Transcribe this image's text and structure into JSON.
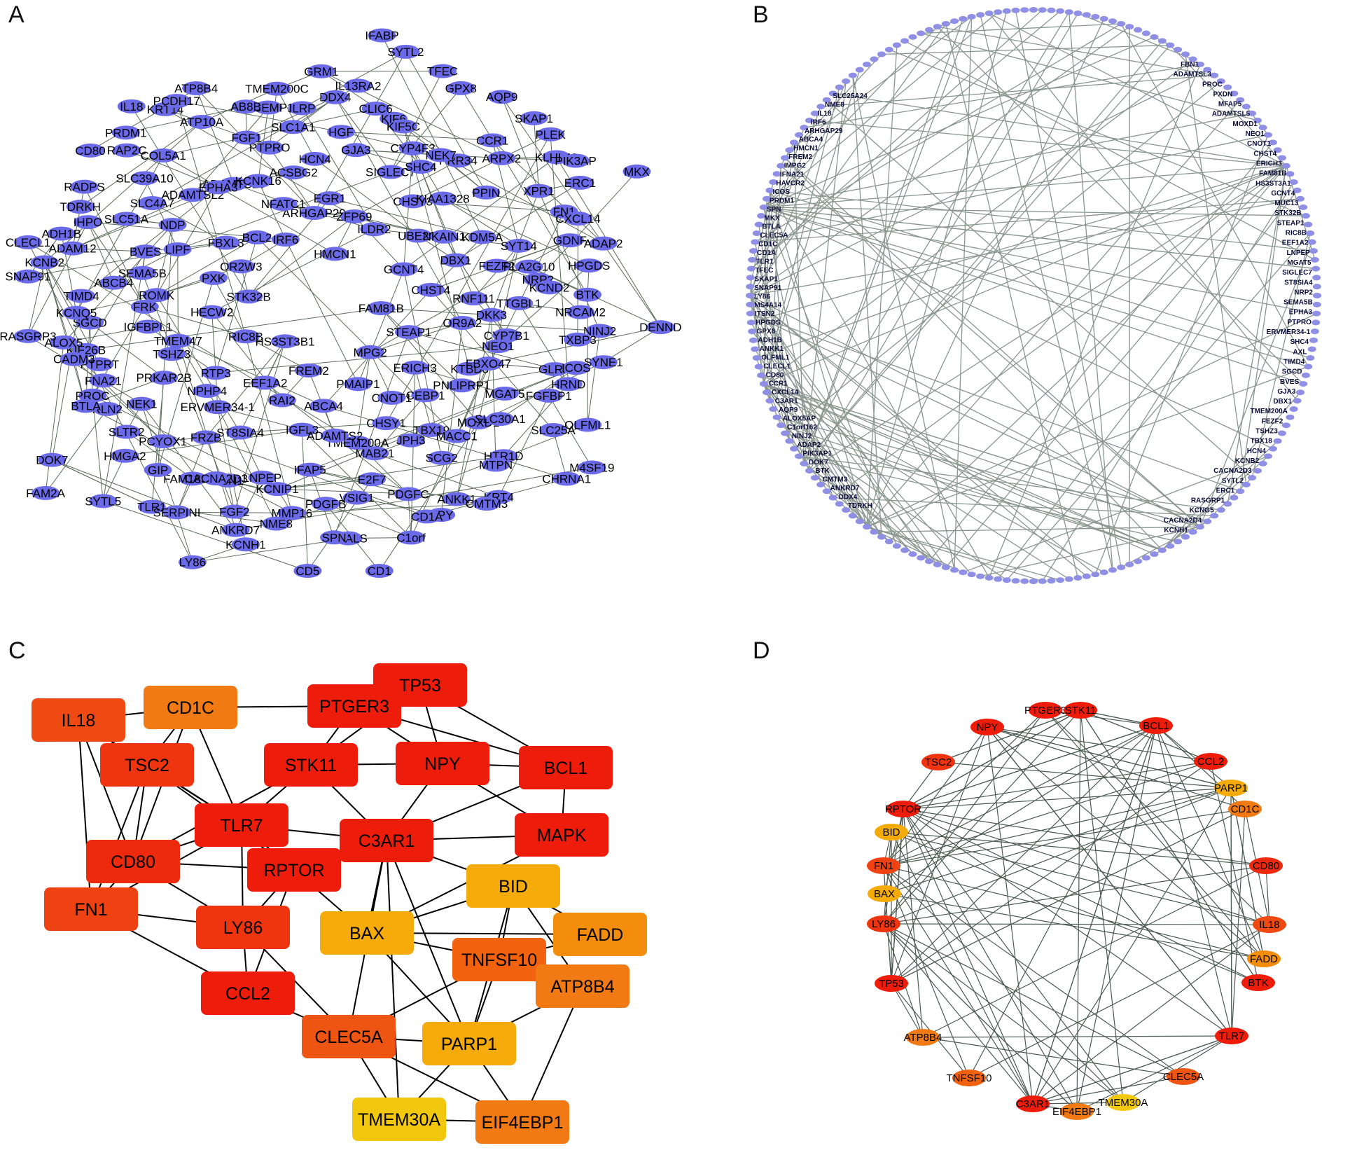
{
  "panels": {
    "A": {
      "label": "A",
      "nodes": [
        "FAM81B",
        "HS3ST3B1",
        "HMCN1",
        "MPG2",
        "STK32B",
        "GCNT4",
        "FREM2",
        "IRF6",
        "STEAP1",
        "RIC8B",
        "ILDR2",
        "PMAIP1",
        "OR2W3",
        "CHST4",
        "EEF1A2",
        "ARHGAP29",
        "ERICH3",
        "HECW2",
        "UBE2O",
        "ABCA4",
        "BCL2",
        "OR9A2",
        "RTP3",
        "ZFP69",
        "CNOT1",
        "PXK",
        "DBX1",
        "RAI2",
        "NFATC1",
        "KTBD8",
        "TMEM47",
        "CHSY3",
        "TMEM200A",
        "FBXL3",
        "RNF111",
        "ERVMER34-1",
        "EGR1",
        "CEBP1",
        "ROMK",
        "NKAIN1",
        "IGFL3",
        "ADAMTS16",
        "NEO1",
        "PRKAR2B",
        "SIGLEC7",
        "CHSY1",
        "LIPF",
        "FEZF2",
        "ST8SIA4",
        "ACSBG2",
        "PNLIPRP1",
        "IGFBPL1",
        "KIAA1328",
        "ADAMTS2",
        "ADAMTSL2",
        "DKK3",
        "NPHP4",
        "GJA3",
        "TBX19",
        "SEMA5B",
        "KDM5A",
        "LNPEP",
        "KCNK16",
        "FBXO47",
        "TSHZ3",
        "SHC4",
        "MAB21",
        "NDP",
        "NRP2",
        "FRZB",
        "HCN4",
        "MOXD1",
        "FRK",
        "PPIN",
        "IFAP5",
        "EPHA3",
        "CYP7B1",
        "NEK1",
        "KIF6",
        "JPH3",
        "BVES",
        "SYT14",
        "FBN1",
        "PTPRO",
        "MGAT5",
        "KIF26B",
        "PRR34",
        "VSIG1",
        "SLC39A10",
        "TTGBL1",
        "PCYOX1",
        "HGF",
        "MACC1",
        "ABCB4",
        "XPR1",
        "KCNIP1",
        "ATP10A",
        "GLRA",
        "PROC",
        "CYP4F3",
        "PDGFC",
        "SLC51A",
        "PLA2G10",
        "FAM189A1",
        "SLC1A1",
        "SLC30A1",
        "SGCD",
        "ARPX2",
        "PDGFB",
        "COL5A1",
        "NINJ2",
        "SLTR2",
        "CLIC6",
        "SCG2",
        "ADAM12",
        "FN1",
        "FGF2",
        "FGF1",
        "FGFBP1",
        "PTPRT",
        "NEK7",
        "E2F7",
        "SLC4A7",
        "KCND2",
        "GIP",
        "GRM1",
        "HTR1D",
        "TIMD4",
        "KLHL40",
        "MMP16",
        "KRT14",
        "SYNE1",
        "RLN2",
        "KIF5C",
        "NPY",
        "IHPO",
        "GDNF",
        "CACNA2D3",
        "MCEMP1",
        "SLC25A",
        "ALOX5",
        "CCR1",
        "LGALS",
        "RAP2C",
        "NRCAM2",
        "HMGA2",
        "IL13RA2",
        "KRT4",
        "KCNB2",
        "ERC1",
        "KCNH1",
        "ATP8B4",
        "HRND",
        "FNA21",
        "GPX8",
        "C1orf",
        "RADPS",
        "HPGDS",
        "TLR1",
        "ILRP",
        "CHRNA1",
        "KCNQ5",
        "PLEK",
        "CD5",
        "IL18",
        "TXBP3",
        "DOK7",
        "SYTL2",
        "ANKK1",
        "ADH1B",
        "CXCL14",
        "LY86",
        "AB8B",
        "OLFML1",
        "CADM3",
        "AQP9",
        "CD1",
        "CD80",
        "BTK",
        "SYTL5",
        "DDX4",
        "MTPN",
        "SNAP91",
        "PIK3AP",
        "NME8",
        "PCDH17",
        "ICOS",
        "BTLA",
        "TFEC",
        "CD1A",
        "TDRKH",
        "ADAP2",
        "SERPINI",
        "TMEM200C",
        "M4SF19",
        "RASGRP3",
        "SKAP1",
        "SPN",
        "PRDM1",
        "DENND",
        "FAM2A",
        "IFABP",
        "CMTM3",
        "CLECL1",
        "MKX",
        "ANKRD7"
      ]
    },
    "B": {
      "label": "B",
      "left_labels": [
        "SLC25A24",
        "NME8",
        "IL18",
        "IRF6",
        "ARHGAP29",
        "ABCA4",
        "HMCN1",
        "FREM2",
        "IMPG2",
        "IFNA21",
        "HAVCR2",
        "ICOS",
        "PRDM1",
        "SPN",
        "MKX",
        "BTLA",
        "CLEC5A",
        "CD1C",
        "CD1A",
        "TLR1",
        "TFEC",
        "SKAP1",
        "SNAP91",
        "LY86",
        "MS4A14",
        "ITSN2",
        "HPGDS",
        "GPX8",
        "ADH1B",
        "ANKK1",
        "OLFML1",
        "CLECL1",
        "CD80",
        "CCR1",
        "CXCL14",
        "C3AR1",
        "AQP9",
        "ALOX5AP",
        "C1orf162",
        "NINJ2",
        "ADAP2",
        "PIK3AP1",
        "DOK7",
        "BTK",
        "CMTM3",
        "ANKRD7",
        "DDX4",
        "TDRKH"
      ],
      "right_labels": [
        "FBN1",
        "ADAMTSL3",
        "PROC",
        "PXDN",
        "MFAP5",
        "ADAMTSL5",
        "MOXD1",
        "NEO1",
        "CNOT1",
        "CHST4",
        "ERICH3",
        "FAM81B",
        "HS3ST3A1",
        "GCNT4",
        "MUC13",
        "STK32B",
        "STEAP1",
        "RIC8B",
        "EEF1A2",
        "LNPEP",
        "MGAT5",
        "SIGLEC7",
        "ST8SIA4",
        "NRP2",
        "SEMA5B",
        "EPHA3",
        "PTPRO",
        "ERVMER34-1",
        "SHC4",
        "AXL",
        "TIMD4",
        "SGCD",
        "BVES",
        "GJA3",
        "DBX1",
        "TMEM200A",
        "FEZF2",
        "TSHZ3",
        "TBX18",
        "HCN4",
        "KCNB2",
        "CACNA2D3",
        "SYTL2",
        "ERC1",
        "RASGRP1",
        "KCNG5",
        "CACNA2D4",
        "KCNH1"
      ]
    },
    "C": {
      "label": "C",
      "nodes": [
        {
          "id": "TP53",
          "color": "#ed1c0b"
        },
        {
          "id": "PTGER3",
          "color": "#ed1c0b"
        },
        {
          "id": "CD1C",
          "color": "#f27a15"
        },
        {
          "id": "IL18",
          "color": "#ef4a12"
        },
        {
          "id": "STK11",
          "color": "#ed1c0b"
        },
        {
          "id": "NPY",
          "color": "#ed1c0b"
        },
        {
          "id": "BCL1",
          "color": "#ed1c0b"
        },
        {
          "id": "TSC2",
          "color": "#ef3510"
        },
        {
          "id": "TLR7",
          "color": "#ed1c0b"
        },
        {
          "id": "C3AR1",
          "color": "#ed1c0b"
        },
        {
          "id": "MAPK",
          "color": "#ed1c0b"
        },
        {
          "id": "CD80",
          "color": "#ed2a0e"
        },
        {
          "id": "RPTOR",
          "color": "#ed1c0b"
        },
        {
          "id": "BID",
          "color": "#f5ab0a"
        },
        {
          "id": "FN1",
          "color": "#ef4212"
        },
        {
          "id": "LY86",
          "color": "#ef3510"
        },
        {
          "id": "BAX",
          "color": "#f5ab0a"
        },
        {
          "id": "FADD",
          "color": "#f58d0c"
        },
        {
          "id": "TNFSF10",
          "color": "#f2620f"
        },
        {
          "id": "CCL2",
          "color": "#ed1c0b"
        },
        {
          "id": "ATP8B4",
          "color": "#f27a15"
        },
        {
          "id": "CLEC5A",
          "color": "#ef5512"
        },
        {
          "id": "PARP1",
          "color": "#f5ab0a"
        },
        {
          "id": "TMEM30A",
          "color": "#f2c80f"
        },
        {
          "id": "EIF4EBP1",
          "color": "#f27a15"
        }
      ]
    },
    "D": {
      "label": "D",
      "nodes": [
        {
          "id": "PTGER3",
          "color": "#ed1c0b"
        },
        {
          "id": "STK11",
          "color": "#ed1c0b"
        },
        {
          "id": "BCL1",
          "color": "#ed1c0b"
        },
        {
          "id": "NPY",
          "color": "#ed1c0b"
        },
        {
          "id": "CCL2",
          "color": "#ed1c0b"
        },
        {
          "id": "TSC2",
          "color": "#ef3510"
        },
        {
          "id": "PARP1",
          "color": "#f5ab0a"
        },
        {
          "id": "CD1C",
          "color": "#f27a15"
        },
        {
          "id": "RPTOR",
          "color": "#ed1c0b"
        },
        {
          "id": "BID",
          "color": "#f5ab0a"
        },
        {
          "id": "CD80",
          "color": "#ed2a0e"
        },
        {
          "id": "FN1",
          "color": "#ef4212"
        },
        {
          "id": "BAX",
          "color": "#f5ab0a"
        },
        {
          "id": "IL18",
          "color": "#ef4a12"
        },
        {
          "id": "LY86",
          "color": "#ef3510"
        },
        {
          "id": "FADD",
          "color": "#f58d0c"
        },
        {
          "id": "TP53",
          "color": "#ed1c0b"
        },
        {
          "id": "BTK",
          "color": "#ed1c0b"
        },
        {
          "id": "TLR7",
          "color": "#ed1c0b"
        },
        {
          "id": "ATP8B4",
          "color": "#f27a15"
        },
        {
          "id": "CLEC5A",
          "color": "#ef5512"
        },
        {
          "id": "TNFSF10",
          "color": "#f2620f"
        },
        {
          "id": "TMEM30A",
          "color": "#f2c80f"
        },
        {
          "id": "C3AR1",
          "color": "#ed1c0b"
        },
        {
          "id": "EIF4EBP1",
          "color": "#f27a15"
        }
      ]
    }
  },
  "colors": {
    "panel_a_node": "#6b6bea",
    "edge_a": "#5a6b5a",
    "edge_b": "#8a9690",
    "edge_c": "#000000",
    "edge_d": "#4a5a52"
  }
}
